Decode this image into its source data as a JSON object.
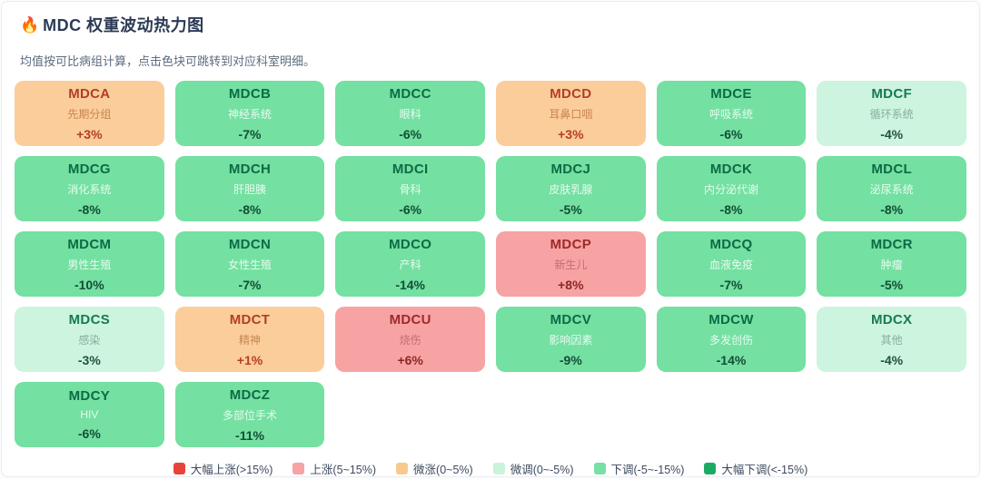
{
  "header": {
    "icon": "fire-icon",
    "icon_glyph": "🔥",
    "title": "MDC 权重波动热力图",
    "subtitle": "均值按可比病组计算，点击色块可跳转到对应科室明细。"
  },
  "chart_data": {
    "type": "heatmap",
    "title": "MDC 权重波动热力图",
    "note": "均值按可比病组计算，点击色块可跳转到对应科室明细。",
    "columns": 6,
    "tiles": [
      {
        "code": "MDCA",
        "name": "先期分组",
        "value": "+3%",
        "value_num": 3,
        "band": "micro_up"
      },
      {
        "code": "MDCB",
        "name": "神经系统",
        "value": "-7%",
        "value_num": -7,
        "band": "down"
      },
      {
        "code": "MDCC",
        "name": "眼科",
        "value": "-6%",
        "value_num": -6,
        "band": "down"
      },
      {
        "code": "MDCD",
        "name": "耳鼻口咽",
        "value": "+3%",
        "value_num": 3,
        "band": "micro_up"
      },
      {
        "code": "MDCE",
        "name": "呼吸系统",
        "value": "-6%",
        "value_num": -6,
        "band": "down"
      },
      {
        "code": "MDCF",
        "name": "循环系统",
        "value": "-4%",
        "value_num": -4,
        "band": "micro_down"
      },
      {
        "code": "MDCG",
        "name": "消化系统",
        "value": "-8%",
        "value_num": -8,
        "band": "down"
      },
      {
        "code": "MDCH",
        "name": "肝胆胰",
        "value": "-8%",
        "value_num": -8,
        "band": "down"
      },
      {
        "code": "MDCI",
        "name": "骨科",
        "value": "-6%",
        "value_num": -6,
        "band": "down"
      },
      {
        "code": "MDCJ",
        "name": "皮肤乳腺",
        "value": "-5%",
        "value_num": -5,
        "band": "down"
      },
      {
        "code": "MDCK",
        "name": "内分泌代谢",
        "value": "-8%",
        "value_num": -8,
        "band": "down"
      },
      {
        "code": "MDCL",
        "name": "泌尿系统",
        "value": "-8%",
        "value_num": -8,
        "band": "down"
      },
      {
        "code": "MDCM",
        "name": "男性生殖",
        "value": "-10%",
        "value_num": -10,
        "band": "down"
      },
      {
        "code": "MDCN",
        "name": "女性生殖",
        "value": "-7%",
        "value_num": -7,
        "band": "down"
      },
      {
        "code": "MDCO",
        "name": "产科",
        "value": "-14%",
        "value_num": -14,
        "band": "down"
      },
      {
        "code": "MDCP",
        "name": "新生儿",
        "value": "+8%",
        "value_num": 8,
        "band": "up"
      },
      {
        "code": "MDCQ",
        "name": "血液免疫",
        "value": "-7%",
        "value_num": -7,
        "band": "down"
      },
      {
        "code": "MDCR",
        "name": "肿瘤",
        "value": "-5%",
        "value_num": -5,
        "band": "down"
      },
      {
        "code": "MDCS",
        "name": "感染",
        "value": "-3%",
        "value_num": -3,
        "band": "micro_down"
      },
      {
        "code": "MDCT",
        "name": "精神",
        "value": "+1%",
        "value_num": 1,
        "band": "micro_up"
      },
      {
        "code": "MDCU",
        "name": "烧伤",
        "value": "+6%",
        "value_num": 6,
        "band": "up"
      },
      {
        "code": "MDCV",
        "name": "影响因素",
        "value": "-9%",
        "value_num": -9,
        "band": "down"
      },
      {
        "code": "MDCW",
        "name": "多发创伤",
        "value": "-14%",
        "value_num": -14,
        "band": "down"
      },
      {
        "code": "MDCX",
        "name": "其他",
        "value": "-4%",
        "value_num": -4,
        "band": "micro_down"
      },
      {
        "code": "MDCY",
        "name": "HIV",
        "value": "-6%",
        "value_num": -6,
        "band": "down"
      },
      {
        "code": "MDCZ",
        "name": "多部位手术",
        "value": "-11%",
        "value_num": -11,
        "band": "down"
      }
    ],
    "band_styles": {
      "strong_up": {
        "bg": "#e8433a",
        "code": "#7a1410",
        "name": "#f8d0cd",
        "value": "#7a1410"
      },
      "up": {
        "bg": "#f7a3a3",
        "code": "#9c2b2b",
        "name": "#c36f6f",
        "value": "#8e2626"
      },
      "micro_up": {
        "bg": "#facd9b",
        "code": "#b33e28",
        "name": "#c9854f",
        "value": "#b33e28"
      },
      "micro_down": {
        "bg": "#cdf4de",
        "code": "#177a52",
        "name": "#86ae9b",
        "value": "#20523f"
      },
      "down": {
        "bg": "#74e0a1",
        "code": "#0c6b45",
        "name": "#e7fbf0",
        "value": "#124e37"
      },
      "strong_down": {
        "bg": "#1cab63",
        "code": "#03351e",
        "name": "#c9f2dd",
        "value": "#03351e"
      }
    },
    "legend_position": "bottom-center",
    "legend": [
      {
        "band": "strong_up",
        "label": "大幅上涨(>15%)",
        "color": "#e8433a"
      },
      {
        "band": "up",
        "label": "上涨(5~15%)",
        "color": "#f5a3a3"
      },
      {
        "band": "micro_up",
        "label": "微涨(0~5%)",
        "color": "#f8c98f"
      },
      {
        "band": "micro_down",
        "label": "微调(0~-5%)",
        "color": "#c9f3db"
      },
      {
        "band": "down",
        "label": "下调(-5~-15%)",
        "color": "#77e0a4"
      },
      {
        "band": "strong_down",
        "label": "大幅下调(<-15%)",
        "color": "#1cab63"
      }
    ]
  }
}
